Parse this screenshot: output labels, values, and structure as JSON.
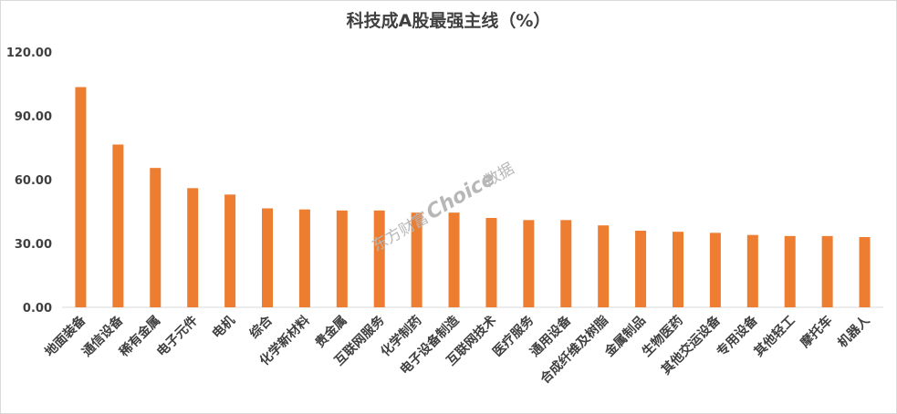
{
  "chart_data": {
    "type": "bar",
    "title": "科技成A股最强主线（%）",
    "xlabel": "",
    "ylabel": "",
    "ylim": [
      0,
      120
    ],
    "yticks": [
      "0.00",
      "30.00",
      "60.00",
      "90.00",
      "120.00"
    ],
    "grid": false,
    "bar_color": "#ed7d31",
    "categories": [
      "地面装备",
      "通信设备",
      "稀有金属",
      "电子元件",
      "电机",
      "综合",
      "化学新材料",
      "贵金属",
      "互联网服务",
      "化学制药",
      "电子设备制造",
      "互联网技术",
      "医疗服务",
      "通用设备",
      "合成纤维及树脂",
      "金属制品",
      "生物医药",
      "其他交运设备",
      "专用设备",
      "其他轻工",
      "摩托车",
      "机器人"
    ],
    "values": [
      103.5,
      76.5,
      65.5,
      56.0,
      53.0,
      46.5,
      46.0,
      45.5,
      45.5,
      44.5,
      44.5,
      42.0,
      41.0,
      41.0,
      38.5,
      36.0,
      35.5,
      35.0,
      34.0,
      33.5,
      33.5,
      33.0
    ]
  },
  "watermark": {
    "brand": "东方财富",
    "product": "Choice",
    "suffix": "数据"
  }
}
